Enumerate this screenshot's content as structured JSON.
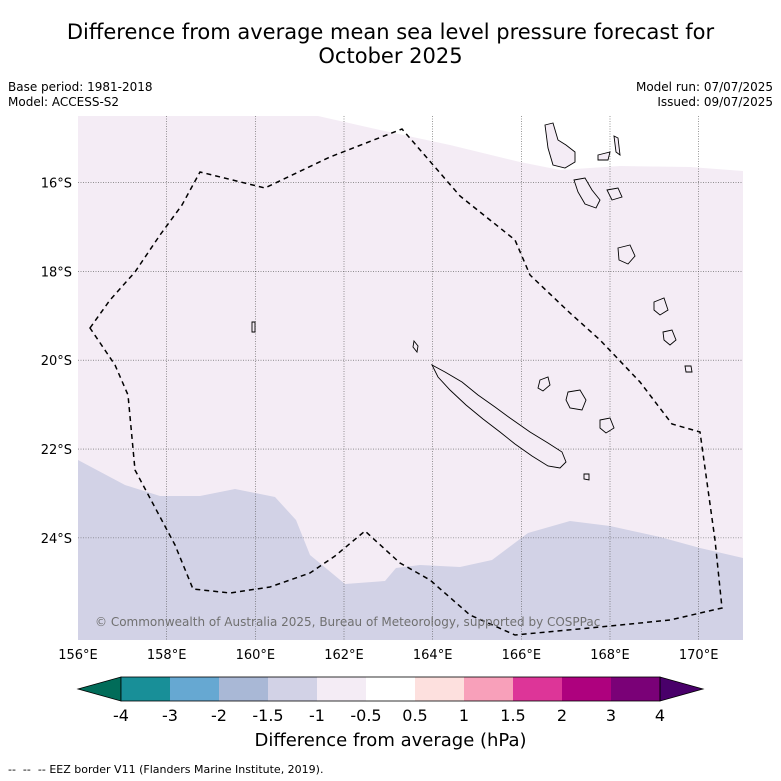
{
  "title": {
    "line1": "Difference from average mean sea level pressure forecast for",
    "line2": "October 2025"
  },
  "meta": {
    "base_period": "Base period: 1981-2018",
    "model": "Model: ACCESS-S2",
    "model_run": "Model run: 07/07/2025",
    "issued": "Issued: 09/07/2025"
  },
  "map": {
    "lon_range": [
      156,
      171
    ],
    "lat_range": [
      -26.3,
      -14.5
    ],
    "lon_ticks": [
      "156°E",
      "158°E",
      "160°E",
      "162°E",
      "164°E",
      "166°E",
      "168°E",
      "170°E"
    ],
    "lat_ticks": [
      "16°S",
      "18°S",
      "20°S",
      "22°S",
      "24°S"
    ],
    "lon_tick_values": [
      156,
      158,
      160,
      162,
      164,
      166,
      168,
      170
    ],
    "lat_tick_values": [
      -16,
      -18,
      -20,
      -22,
      -24
    ],
    "copyright": "© Commonwealth of Australia 2025, Bureau of Meteorology, supported by COSPPac",
    "field_colors": {
      "neg_1_5_to_neg_1": "#d2d2e6",
      "neg_1_to_neg_0_5": "#f4ecf5",
      "background": "#ffffff"
    }
  },
  "colorbar": {
    "labels": [
      "-4",
      "-3",
      "-2",
      "-1.5",
      "-1",
      "-0.5",
      "0.5",
      "1",
      "1.5",
      "2",
      "3",
      "4"
    ],
    "colors": [
      "#188f98",
      "#66a8d2",
      "#a9b8d6",
      "#d2d2e6",
      "#f4ecf5",
      "#ffffff",
      "#fde0de",
      "#f8a0ba",
      "#dd3598",
      "#ae017e",
      "#7a0177"
    ],
    "under_color": "#016c59",
    "over_color": "#49006a",
    "label": "Difference from average (hPa)"
  },
  "footer": {
    "legend_marker": "--  --  --",
    "text": "EEZ border V11 (Flanders Marine Institute, 2019)."
  }
}
